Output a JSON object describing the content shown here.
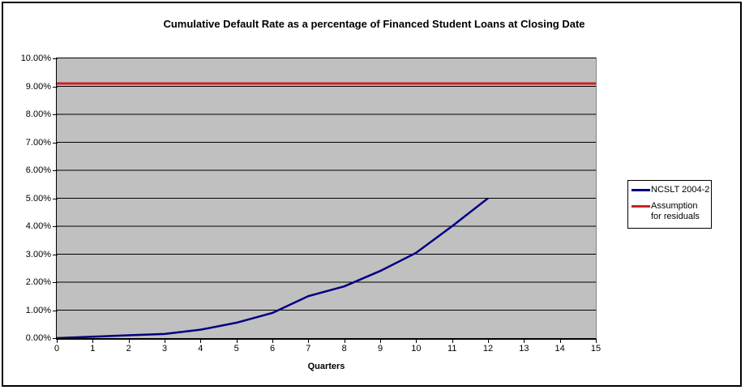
{
  "chart": {
    "title": "Cumulative Default Rate as a percentage of Financed Student Loans at Closing Date",
    "plot_background": "#C0C0C0",
    "gridline_color": "#000000",
    "x_axis": {
      "title": "Quarters",
      "tick_labels": [
        "0",
        "1",
        "2",
        "3",
        "4",
        "5",
        "6",
        "7",
        "8",
        "9",
        "10",
        "11",
        "12",
        "13",
        "14",
        "15"
      ]
    },
    "y_axis": {
      "tick_labels_bottom_to_top": [
        "0.00%",
        "1.00%",
        "2.00%",
        "3.00%",
        "4.00%",
        "5.00%",
        "6.00%",
        "7.00%",
        "8.00%",
        "9.00%",
        "10.00%"
      ]
    },
    "legend": {
      "entries": [
        {
          "lines": [
            "NCSLT 2004-2"
          ],
          "color": "#000080"
        },
        {
          "lines": [
            "Assumption",
            "for residuals"
          ],
          "color": "#CC2222"
        }
      ]
    }
  },
  "chart_data": {
    "type": "line",
    "title": "Cumulative Default Rate as a percentage of Financed Student Loans at Closing Date",
    "xlabel": "Quarters",
    "ylabel": "",
    "xlim": [
      0,
      15
    ],
    "ylim": [
      0,
      10
    ],
    "y_unit": "%",
    "grid": true,
    "legend_position": "right",
    "series": [
      {
        "name": "NCSLT 2004-2",
        "color": "#000080",
        "x": [
          0,
          1,
          2,
          3,
          4,
          5,
          6,
          7,
          8,
          9,
          10,
          11,
          12
        ],
        "values": [
          0.0,
          0.05,
          0.1,
          0.15,
          0.3,
          0.55,
          0.9,
          1.5,
          1.85,
          2.4,
          3.05,
          4.0,
          5.0
        ]
      },
      {
        "name": "Assumption for residuals",
        "color": "#CC2222",
        "style": "horizontal-line",
        "value": 9.1
      }
    ]
  }
}
